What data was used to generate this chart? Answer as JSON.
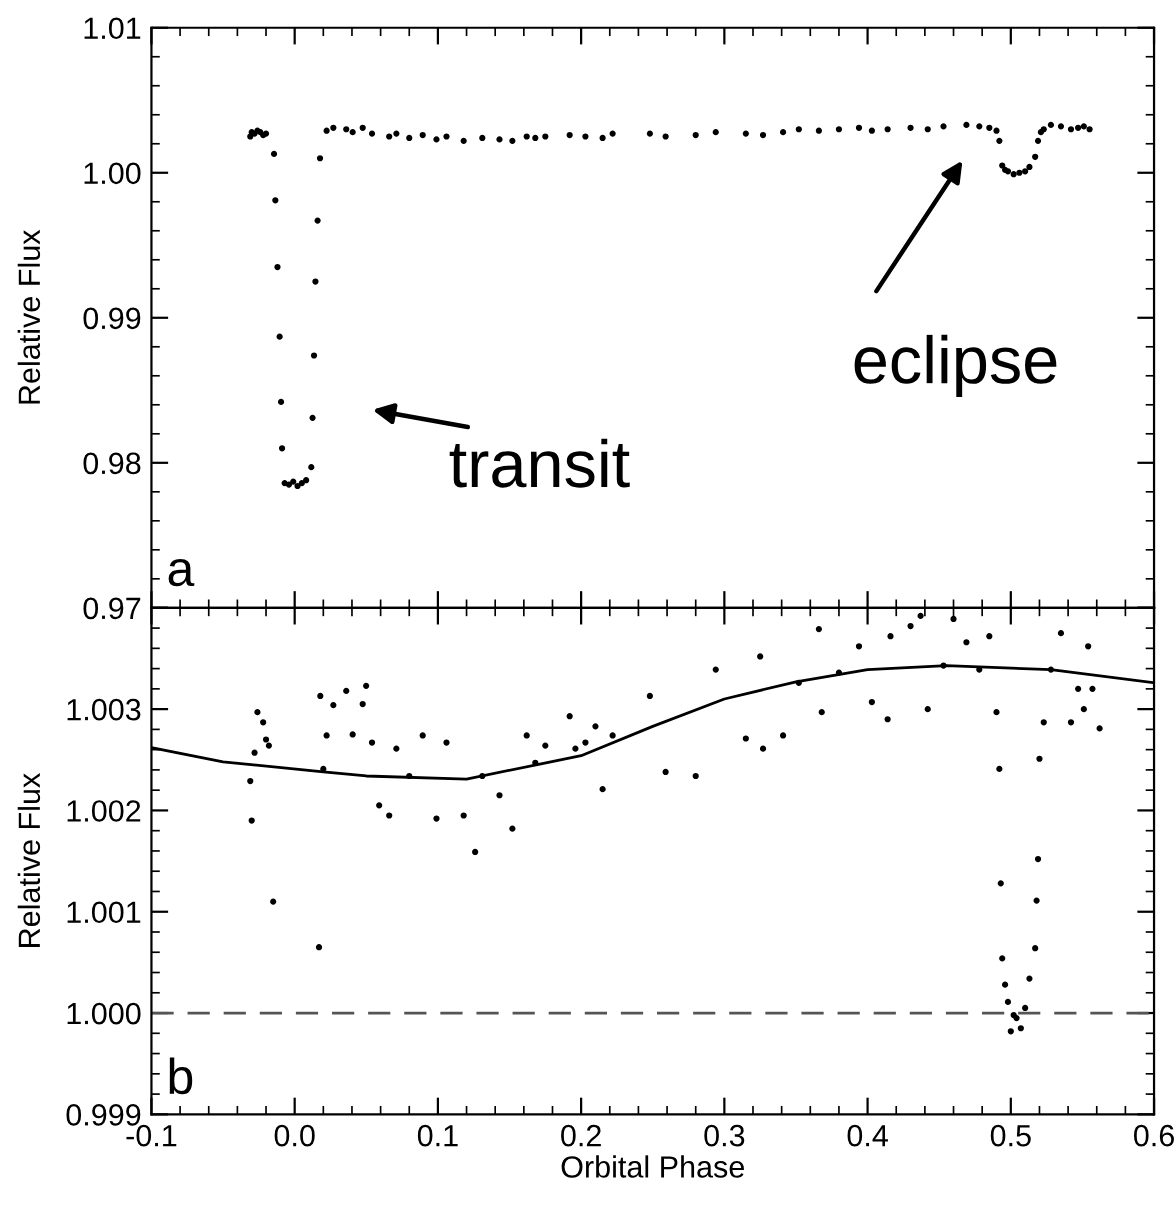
{
  "chart_data": [
    {
      "type": "scatter",
      "ylabel": "Relative Flux",
      "xlim": [
        -0.1,
        0.6
      ],
      "xticks": [
        {
          "value": -0.1,
          "label": null
        },
        {
          "value": 0.0,
          "label": null
        },
        {
          "value": 0.1,
          "label": null
        },
        {
          "value": 0.2,
          "label": null
        },
        {
          "value": 0.3,
          "label": null
        },
        {
          "value": 0.4,
          "label": null
        },
        {
          "value": 0.5,
          "label": null
        },
        {
          "value": 0.6,
          "label": null
        }
      ],
      "ylim": [
        0.97,
        1.01
      ],
      "yticks": [
        {
          "value": 0.97,
          "label": "0.97"
        },
        {
          "value": 0.98,
          "label": "0.98"
        },
        {
          "value": 0.99,
          "label": "0.99"
        },
        {
          "value": 1.0,
          "label": "1.00"
        },
        {
          "value": 1.01,
          "label": "1.01"
        }
      ],
      "tick_labels": "y",
      "grid": false,
      "legend": false,
      "marker": "circle",
      "series": [
        {
          "color": "#000000",
          "x": [
            -0.031,
            -0.03,
            -0.028,
            -0.026,
            -0.024,
            -0.022,
            -0.02,
            -0.0144,
            -0.0135,
            -0.012,
            -0.0105,
            -0.0095,
            -0.0088,
            -0.007,
            -0.004,
            -0.001,
            0.002,
            0.005,
            0.008,
            0.0116,
            0.0125,
            0.0135,
            0.0145,
            0.016,
            0.0177,
            0.0223,
            0.027,
            0.036,
            0.0405,
            0.0475,
            0.054,
            0.066,
            0.071,
            0.08,
            0.0894,
            0.099,
            0.106,
            0.118,
            0.131,
            0.143,
            0.152,
            0.162,
            0.168,
            0.175,
            0.192,
            0.203,
            0.215,
            0.222,
            0.248,
            0.259,
            0.28,
            0.294,
            0.315,
            0.327,
            0.341,
            0.352,
            0.366,
            0.38,
            0.394,
            0.403,
            0.414,
            0.43,
            0.442,
            0.453,
            0.469,
            0.478,
            0.485,
            0.49,
            0.492,
            0.494,
            0.496,
            0.498,
            0.502,
            0.506,
            0.51,
            0.513,
            0.517,
            0.519,
            0.521,
            0.523,
            0.528,
            0.535,
            0.542,
            0.547,
            0.551,
            0.555
          ],
          "values": [
            1.0025,
            1.0028,
            1.0027,
            1.0029,
            1.0028,
            1.0026,
            1.0027,
            1.0013,
            0.9981,
            0.9935,
            0.9887,
            0.9842,
            0.981,
            0.9786,
            0.9785,
            0.9787,
            0.9784,
            0.9786,
            0.9788,
            0.9797,
            0.9831,
            0.9874,
            0.9925,
            0.9967,
            1.001,
            1.0029,
            1.0031,
            1.003,
            1.0028,
            1.0031,
            1.0027,
            1.0025,
            1.0027,
            1.0024,
            1.0026,
            1.0023,
            1.0025,
            1.0022,
            1.0024,
            1.0023,
            1.0022,
            1.0025,
            1.0024,
            1.0025,
            1.0026,
            1.0025,
            1.0024,
            1.0027,
            1.0027,
            1.0025,
            1.0026,
            1.0028,
            1.0027,
            1.0026,
            1.0028,
            1.003,
            1.0029,
            1.003,
            1.0031,
            1.0029,
            1.003,
            1.0031,
            1.003,
            1.0032,
            1.0033,
            1.0032,
            1.0031,
            1.0029,
            1.0022,
            1.0005,
            1.0002,
            1.0001,
            0.9999,
            1.0,
            1.0001,
            1.0004,
            1.0011,
            1.0022,
            1.0028,
            1.003,
            1.0033,
            1.0032,
            1.003,
            1.0031,
            1.0032,
            1.003
          ]
        }
      ],
      "annotations": [
        "transit",
        "eclipse",
        "a"
      ]
    },
    {
      "type": "scatter",
      "xlabel": "Orbital Phase",
      "ylabel": "Relative Flux",
      "xlim": [
        -0.1,
        0.6
      ],
      "xticks": [
        {
          "value": -0.1,
          "label": "-0.1"
        },
        {
          "value": 0.0,
          "label": "0.0"
        },
        {
          "value": 0.1,
          "label": "0.1"
        },
        {
          "value": 0.2,
          "label": "0.2"
        },
        {
          "value": 0.3,
          "label": "0.3"
        },
        {
          "value": 0.4,
          "label": "0.4"
        },
        {
          "value": 0.5,
          "label": "0.5"
        },
        {
          "value": 0.6,
          "label": "0.6"
        }
      ],
      "ylim": [
        0.999,
        1.004
      ],
      "yticks": [
        {
          "value": 0.999,
          "label": "0.999"
        },
        {
          "value": 1.0,
          "label": "1.000"
        },
        {
          "value": 1.001,
          "label": "1.001"
        },
        {
          "value": 1.002,
          "label": "1.002"
        },
        {
          "value": 1.003,
          "label": "1.003"
        },
        {
          "value": 1.004,
          "label": null
        }
      ],
      "grid": false,
      "legend": false,
      "marker": "circle",
      "series": [
        {
          "type": "scatter",
          "color": "#000000",
          "x": [
            -0.031,
            -0.03,
            -0.028,
            -0.026,
            -0.022,
            -0.02,
            -0.018,
            -0.015,
            0.017,
            0.0179,
            0.02,
            0.0223,
            0.027,
            0.036,
            0.0405,
            0.0475,
            0.0499,
            0.054,
            0.059,
            0.066,
            0.071,
            0.08,
            0.0894,
            0.099,
            0.106,
            0.118,
            0.126,
            0.131,
            0.143,
            0.152,
            0.162,
            0.168,
            0.175,
            0.192,
            0.196,
            0.203,
            0.21,
            0.215,
            0.222,
            0.248,
            0.259,
            0.28,
            0.294,
            0.315,
            0.325,
            0.327,
            0.341,
            0.352,
            0.366,
            0.368,
            0.38,
            0.394,
            0.403,
            0.414,
            0.416,
            0.43,
            0.437,
            0.442,
            0.453,
            0.46,
            0.469,
            0.478,
            0.485,
            0.49,
            0.492,
            0.493,
            0.494,
            0.496,
            0.498,
            0.5,
            0.502,
            0.504,
            0.507,
            0.51,
            0.513,
            0.517,
            0.518,
            0.519,
            0.52,
            0.523,
            0.528,
            0.535,
            0.542,
            0.547,
            0.551,
            0.554,
            0.557,
            0.562
          ],
          "values": [
            1.00229,
            1.0019,
            1.00257,
            1.00297,
            1.00287,
            1.0027,
            1.00264,
            1.0011,
            1.00065,
            1.00313,
            1.00241,
            1.00274,
            1.00304,
            1.00318,
            1.00275,
            1.00305,
            1.00323,
            1.00267,
            1.00205,
            1.00195,
            1.00261,
            1.00234,
            1.00274,
            1.00192,
            1.00267,
            1.00195,
            1.00159,
            1.00234,
            1.00215,
            1.00182,
            1.00274,
            1.00247,
            1.00264,
            1.00293,
            1.00261,
            1.00267,
            1.00283,
            1.00221,
            1.00274,
            1.00313,
            1.00238,
            1.00234,
            1.00339,
            1.00271,
            1.00352,
            1.00261,
            1.00274,
            1.00326,
            1.00379,
            1.00297,
            1.00336,
            1.00362,
            1.00307,
            1.0029,
            1.00372,
            1.00382,
            1.00392,
            1.003,
            1.00343,
            1.00389,
            1.00366,
            1.00339,
            1.00372,
            1.00297,
            1.00241,
            1.00128,
            1.00054,
            1.00028,
            1.00011,
            0.99982,
            0.99998,
            0.99995,
            0.99985,
            1.00005,
            1.00034,
            1.00064,
            1.00111,
            1.00152,
            1.00251,
            1.00287,
            1.00339,
            1.00375,
            1.00287,
            1.0032,
            1.003,
            1.00362,
            1.0032,
            1.00281
          ]
        },
        {
          "type": "line",
          "marker": "none",
          "color": "#000000",
          "x": [
            -0.1,
            -0.05,
            0.02,
            0.05,
            0.12,
            0.2,
            0.25,
            0.3,
            0.35,
            0.4,
            0.455,
            0.528,
            0.6
          ],
          "values": [
            1.00262,
            1.00248,
            1.00238,
            1.00234,
            1.00231,
            1.00254,
            1.00283,
            1.0031,
            1.00327,
            1.00339,
            1.00343,
            1.00339,
            1.00326
          ]
        }
      ],
      "ref_lines": [
        {
          "axis": "y",
          "value": 1.0,
          "color": "#555555",
          "line_style": "dashed"
        }
      ],
      "annotations": [
        "b"
      ]
    }
  ]
}
